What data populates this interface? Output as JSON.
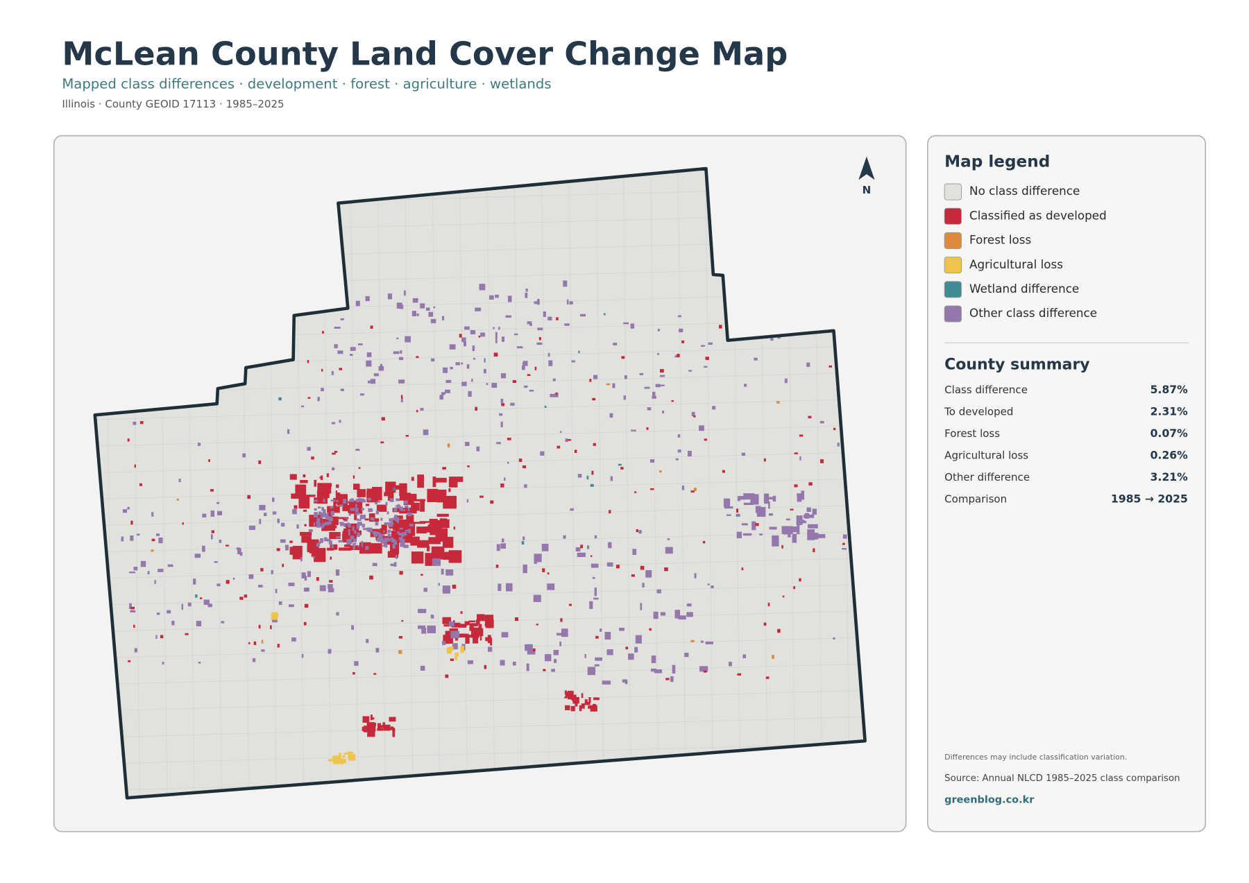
{
  "header": {
    "title": "McLean County Land Cover Change Map",
    "subtitle": "Mapped class differences · development · forest · agriculture · wetlands",
    "meta": "Illinois · County GEOID 17113 · 1985–2025"
  },
  "map": {
    "north_label": "N"
  },
  "legend": {
    "title": "Map legend",
    "items": [
      {
        "label": "No class difference",
        "color": "#e1e2de"
      },
      {
        "label": "Classified as developed",
        "color": "#c62a3a"
      },
      {
        "label": "Forest loss",
        "color": "#de8a3c"
      },
      {
        "label": "Agricultural loss",
        "color": "#eec44a"
      },
      {
        "label": "Wetland difference",
        "color": "#3f8d93"
      },
      {
        "label": "Other class difference",
        "color": "#9377ad"
      }
    ]
  },
  "summary": {
    "title": "County summary",
    "rows": [
      [
        "Class difference",
        "5.87%"
      ],
      [
        "To developed",
        "2.31%"
      ],
      [
        "Forest loss",
        "0.07%"
      ],
      [
        "Agricultural loss",
        "0.26%"
      ],
      [
        "Other difference",
        "3.21%"
      ],
      [
        "Comparison",
        "1985 → 2025"
      ]
    ]
  },
  "footer": {
    "note": "Differences may include classification variation.",
    "source": "Source: Annual NLCD 1985–2025 class comparison",
    "site": "greenblog.co.kr"
  }
}
